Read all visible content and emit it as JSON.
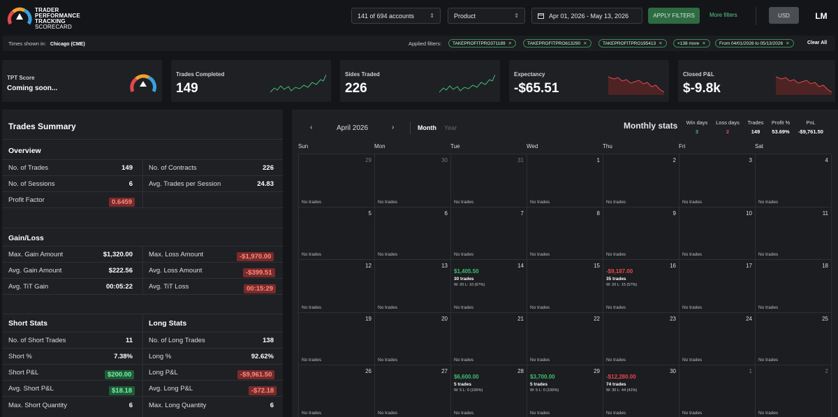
{
  "header": {
    "logo_lines": [
      "TRADER",
      "PERFORMANCE",
      "TRACKING",
      "SCORECARD"
    ],
    "accounts_select": "141 of 694 accounts",
    "product_select": "Product",
    "date_range": "Apr 01, 2026 - May 13, 2026",
    "apply_label": "APPLY FILTERS",
    "more_filters": "More filters",
    "currency": "USD",
    "user_initials": "LM"
  },
  "filters": {
    "times_label": "Times shown in:",
    "timezone": "Chicago (CME)",
    "applied_label": "Applied filters:",
    "chips": [
      "TAKEPROFITPRO371189",
      "TAKEPROFITPRO613290",
      "TAKEPROFITPRO195413",
      "+138 more",
      "From 04/01/2026 to 05/13/2026"
    ],
    "clear_all": "Clear All"
  },
  "cards": {
    "tpt": {
      "title": "TPT Score",
      "value": "Coming soon..."
    },
    "trades": {
      "title": "Trades Completed",
      "value": "149"
    },
    "sides": {
      "title": "Sides Traded",
      "value": "226"
    },
    "expectancy": {
      "title": "Expectancy",
      "value": "-$65.51"
    },
    "closed": {
      "title": "Closed P&L",
      "value": "$-9.8k"
    }
  },
  "summary": {
    "title": "Trades Summary",
    "overview": {
      "title": "Overview",
      "trades_label": "No. of Trades",
      "trades_value": "149",
      "contracts_label": "No. of Contracts",
      "contracts_value": "226",
      "sessions_label": "No. of Sessions",
      "sessions_value": "6",
      "avg_trades_label": "Avg. Trades per Session",
      "avg_trades_value": "24.83",
      "pf_label": "Profit Factor",
      "pf_value": "0.6459"
    },
    "gainloss": {
      "title": "Gain/Loss",
      "max_gain_label": "Max. Gain Amount",
      "max_gain_value": "$1,320.00",
      "max_loss_label": "Max. Loss Amount",
      "max_loss_value": "-$1,970.00",
      "avg_gain_label": "Avg. Gain Amount",
      "avg_gain_value": "$222.56",
      "avg_loss_label": "Avg. Loss Amount",
      "avg_loss_value": "-$399.51",
      "tit_gain_label": "Avg. TiT Gain",
      "tit_gain_value": "00:05:22",
      "tit_loss_label": "Avg. TiT Loss",
      "tit_loss_value": "00:15:29"
    },
    "short": {
      "title": "Short Stats",
      "trades_label": "No. of Short Trades",
      "trades_value": "11",
      "pct_label": "Short %",
      "pct_value": "7.38%",
      "pnl_label": "Short P&L",
      "pnl_value": "$200.00",
      "avg_pnl_label": "Avg. Short P&L",
      "avg_pnl_value": "$18.18",
      "maxq_label": "Max. Short Quantity",
      "maxq_value": "6"
    },
    "long": {
      "title": "Long Stats",
      "trades_label": "No. of Long Trades",
      "trades_value": "138",
      "pct_label": "Long %",
      "pct_value": "92.62%",
      "pnl_label": "Long P&L",
      "pnl_value": "-$9,961.50",
      "avg_pnl_label": "Avg. Long P&L",
      "avg_pnl_value": "-$72.18",
      "maxq_label": "Max. Long Quantity",
      "maxq_value": "6"
    }
  },
  "calendar": {
    "prev": "‹",
    "month_label": "April 2026",
    "next": "›",
    "view_month": "Month",
    "view_year": "Year",
    "monthly_stats_title": "Monthly stats",
    "stats": {
      "win_days_label": "Win days",
      "win_days": "3",
      "loss_days_label": "Loss days",
      "loss_days": "2",
      "trades_label": "Trades",
      "trades": "149",
      "profit_label": "Profit %",
      "profit": "53.69%",
      "pnl_label": "PnL",
      "pnl": "-$9,761.50"
    },
    "weekdays": [
      "Sun",
      "Mon",
      "Tue",
      "Wed",
      "Thu",
      "Fri",
      "Sat"
    ],
    "no_trades": "No trades",
    "weeks": [
      [
        {
          "d": "29",
          "out": true
        },
        {
          "d": "30",
          "out": true
        },
        {
          "d": "31",
          "out": true
        },
        {
          "d": "1"
        },
        {
          "d": "2"
        },
        {
          "d": "3"
        },
        {
          "d": "4"
        }
      ],
      [
        {
          "d": "5"
        },
        {
          "d": "6"
        },
        {
          "d": "7"
        },
        {
          "d": "8"
        },
        {
          "d": "9"
        },
        {
          "d": "10"
        },
        {
          "d": "11"
        }
      ],
      [
        {
          "d": "12"
        },
        {
          "d": "13"
        },
        {
          "d": "14",
          "pnl": "$1,405.50",
          "pos": true,
          "trades": "30 trades",
          "wl": "W: 20 L: 10 (67%)"
        },
        {
          "d": "15"
        },
        {
          "d": "16",
          "pnl": "-$9,187.00",
          "pos": false,
          "trades": "35 trades",
          "wl": "W: 20 L: 15 (57%)"
        },
        {
          "d": "17"
        },
        {
          "d": "18"
        }
      ],
      [
        {
          "d": "19"
        },
        {
          "d": "20"
        },
        {
          "d": "21"
        },
        {
          "d": "22"
        },
        {
          "d": "23"
        },
        {
          "d": "24"
        },
        {
          "d": "25"
        }
      ],
      [
        {
          "d": "26"
        },
        {
          "d": "27"
        },
        {
          "d": "28",
          "pnl": "$6,600.00",
          "pos": true,
          "trades": "5 trades",
          "wl": "W: 5 L: 0 (100%)"
        },
        {
          "d": "29",
          "pnl": "$3,700.00",
          "pos": true,
          "trades": "5 trades",
          "wl": "W: 5 L: 0 (100%)"
        },
        {
          "d": "30",
          "pnl": "-$12,280.00",
          "pos": false,
          "trades": "74 trades",
          "wl": "W: 30 L: 44 (41%)"
        },
        {
          "d": "1",
          "out": true
        },
        {
          "d": "2",
          "out": true
        }
      ]
    ]
  },
  "colors": {
    "green": "#3fbf6f",
    "red": "#e5484d",
    "accent_green": "#2e6b43"
  }
}
